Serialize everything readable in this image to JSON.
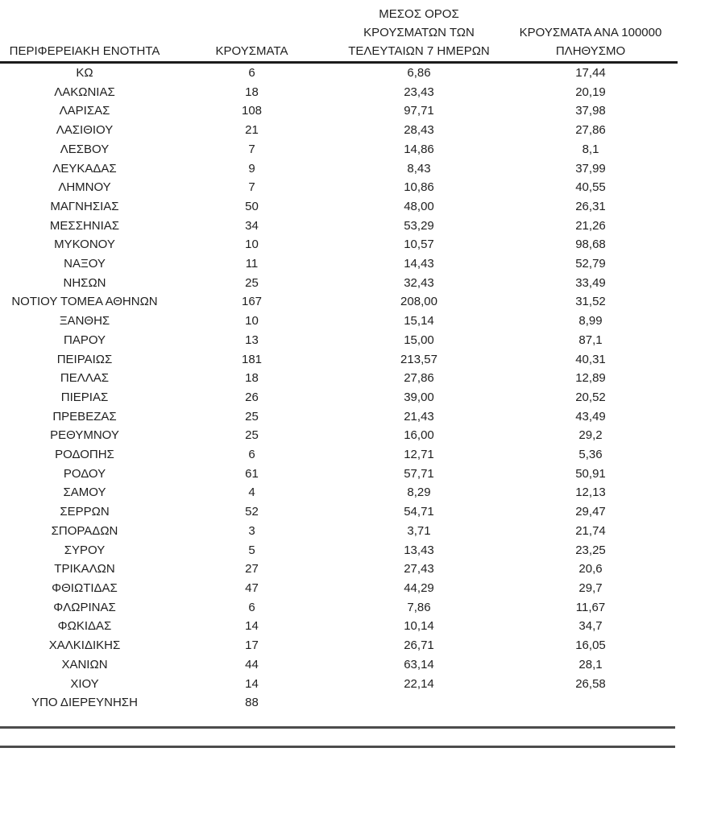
{
  "page": {
    "background": "#ffffff",
    "text_color": "#1f1f1f",
    "rule_color": "#4c4c4c"
  },
  "table": {
    "columns": [
      {
        "id": "region",
        "label": "ΠΕΡΙΦΕΡΕΙΑΚΗ ΕΝΟΤΗΤΑ"
      },
      {
        "id": "cases",
        "label": "ΚΡΟΥΣΜΑΤΑ"
      },
      {
        "id": "avg7day",
        "label": [
          "ΜΕΣΟΣ ΟΡΟΣ",
          "ΚΡΟΥΣΜΑΤΩΝ ΤΩΝ",
          "ΤΕΛΕΥΤΑΙΩΝ 7 ΗΜΕΡΩΝ"
        ]
      },
      {
        "id": "per100k",
        "label": [
          "ΚΡΟΥΣΜΑΤΑ ΑΝΑ 100000",
          "ΠΛΗΘΥΣΜΟ"
        ]
      }
    ],
    "rows": [
      [
        "ΚΩ",
        "6",
        "6,86",
        "17,44"
      ],
      [
        "ΛΑΚΩΝΙΑΣ",
        "18",
        "23,43",
        "20,19"
      ],
      [
        "ΛΑΡΙΣΑΣ",
        "108",
        "97,71",
        "37,98"
      ],
      [
        "ΛΑΣΙΘΙΟΥ",
        "21",
        "28,43",
        "27,86"
      ],
      [
        "ΛΕΣΒΟΥ",
        "7",
        "14,86",
        "8,1"
      ],
      [
        "ΛΕΥΚΑΔΑΣ",
        "9",
        "8,43",
        "37,99"
      ],
      [
        "ΛΗΜΝΟΥ",
        "7",
        "10,86",
        "40,55"
      ],
      [
        "ΜΑΓΝΗΣΙΑΣ",
        "50",
        "48,00",
        "26,31"
      ],
      [
        "ΜΕΣΣΗΝΙΑΣ",
        "34",
        "53,29",
        "21,26"
      ],
      [
        "ΜΥΚΟΝΟΥ",
        "10",
        "10,57",
        "98,68"
      ],
      [
        "ΝΑΞΟΥ",
        "11",
        "14,43",
        "52,79"
      ],
      [
        "ΝΗΣΩΝ",
        "25",
        "32,43",
        "33,49"
      ],
      [
        "ΝΟΤΙΟΥ ΤΟΜΕΑ ΑΘΗΝΩΝ",
        "167",
        "208,00",
        "31,52"
      ],
      [
        "ΞΑΝΘΗΣ",
        "10",
        "15,14",
        "8,99"
      ],
      [
        "ΠΑΡΟΥ",
        "13",
        "15,00",
        "87,1"
      ],
      [
        "ΠΕΙΡΑΙΩΣ",
        "181",
        "213,57",
        "40,31"
      ],
      [
        "ΠΕΛΛΑΣ",
        "18",
        "27,86",
        "12,89"
      ],
      [
        "ΠΙΕΡΙΑΣ",
        "26",
        "39,00",
        "20,52"
      ],
      [
        "ΠΡΕΒΕΖΑΣ",
        "25",
        "21,43",
        "43,49"
      ],
      [
        "ΡΕΘΥΜΝΟΥ",
        "25",
        "16,00",
        "29,2"
      ],
      [
        "ΡΟΔΟΠΗΣ",
        "6",
        "12,71",
        "5,36"
      ],
      [
        "ΡΟΔΟΥ",
        "61",
        "57,71",
        "50,91"
      ],
      [
        "ΣΑΜΟΥ",
        "4",
        "8,29",
        "12,13"
      ],
      [
        "ΣΕΡΡΩΝ",
        "52",
        "54,71",
        "29,47"
      ],
      [
        "ΣΠΟΡΑΔΩΝ",
        "3",
        "3,71",
        "21,74"
      ],
      [
        "ΣΥΡΟΥ",
        "5",
        "13,43",
        "23,25"
      ],
      [
        "ΤΡΙΚΑΛΩΝ",
        "27",
        "27,43",
        "20,6"
      ],
      [
        "ΦΘΙΩΤΙΔΑΣ",
        "47",
        "44,29",
        "29,7"
      ],
      [
        "ΦΛΩΡΙΝΑΣ",
        "6",
        "7,86",
        "11,67"
      ],
      [
        "ΦΩΚΙΔΑΣ",
        "14",
        "10,14",
        "34,7"
      ],
      [
        "ΧΑΛΚΙΔΙΚΗΣ",
        "17",
        "26,71",
        "16,05"
      ],
      [
        "ΧΑΝΙΩΝ",
        "44",
        "63,14",
        "28,1"
      ],
      [
        "ΧΙΟΥ",
        "14",
        "22,14",
        "26,58"
      ],
      [
        "ΥΠΟ ΔΙΕΡΕΥΝΗΣΗ",
        "88",
        "",
        ""
      ]
    ]
  }
}
